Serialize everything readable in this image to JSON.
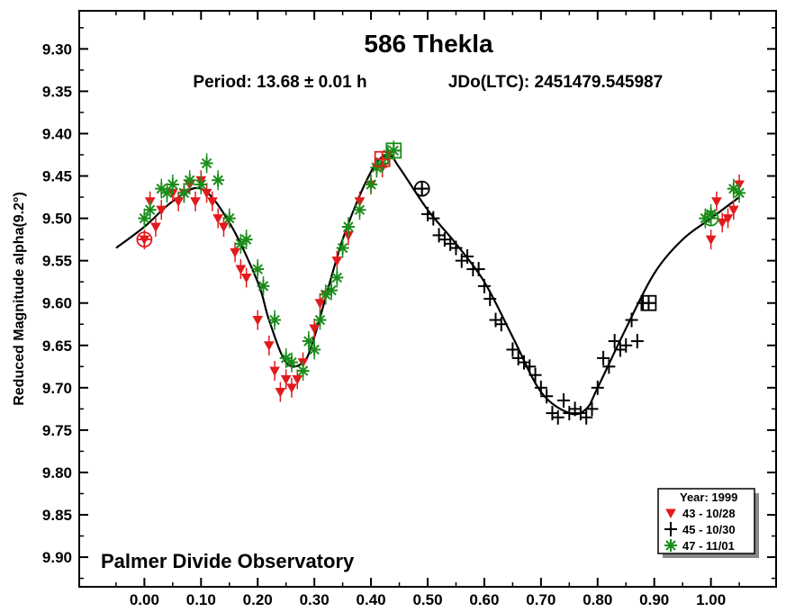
{
  "chart_data": {
    "type": "scatter",
    "title": "586 Thekla",
    "subtitle_period": "Period: 13.68 ± 0.01 h",
    "subtitle_epoch": "JDo(LTC): 2451479.545987",
    "ylabel": "Reduced Magnitude alpha(9.2°)",
    "xlabel": "",
    "footer": "Palmer Divide Observatory",
    "xlim": [
      -0.115,
      1.115
    ],
    "ylim": [
      9.255,
      9.935
    ],
    "y_inverted": true,
    "x_ticks": [
      "0.00",
      "0.10",
      "0.20",
      "0.30",
      "0.40",
      "0.50",
      "0.60",
      "0.70",
      "0.80",
      "0.90",
      "1.00"
    ],
    "y_ticks": [
      "9.30",
      "9.35",
      "9.40",
      "9.45",
      "9.50",
      "9.55",
      "9.60",
      "9.65",
      "9.70",
      "9.75",
      "9.80",
      "9.85",
      "9.90"
    ],
    "legend": {
      "title": "Year: 1999",
      "position": "bottom-right",
      "entries": [
        {
          "label": "43 - 10/28",
          "color": "#e31a1c",
          "marker": "triangle-down"
        },
        {
          "label": "45 - 10/30",
          "color": "#000000",
          "marker": "plus"
        },
        {
          "label": "47 - 11/01",
          "color": "#1a8c1a",
          "marker": "asterisk"
        }
      ]
    },
    "fit_curve": {
      "x": [
        -0.05,
        0.0,
        0.05,
        0.1,
        0.15,
        0.2,
        0.22,
        0.25,
        0.28,
        0.3,
        0.35,
        0.4,
        0.43,
        0.45,
        0.5,
        0.55,
        0.6,
        0.65,
        0.7,
        0.75,
        0.78,
        0.8,
        0.85,
        0.9,
        0.95,
        1.0,
        1.05
      ],
      "y": [
        9.535,
        9.51,
        9.48,
        9.465,
        9.505,
        9.575,
        9.62,
        9.67,
        9.67,
        9.64,
        9.525,
        9.445,
        9.425,
        9.44,
        9.49,
        9.53,
        9.575,
        9.64,
        9.705,
        9.73,
        9.725,
        9.7,
        9.63,
        9.565,
        9.525,
        9.5,
        9.475
      ]
    },
    "series": [
      {
        "name": "43 - 10/28",
        "color": "#e31a1c",
        "marker": "triangle-down",
        "x": [
          0.0,
          0.01,
          0.02,
          0.03,
          0.05,
          0.06,
          0.07,
          0.08,
          0.09,
          0.1,
          0.11,
          0.12,
          0.13,
          0.14,
          0.16,
          0.17,
          0.18,
          0.2,
          0.22,
          0.23,
          0.24,
          0.25,
          0.26,
          0.27,
          0.28,
          0.3,
          0.31,
          0.32,
          0.34,
          0.36,
          0.38,
          0.4,
          0.41,
          0.42,
          1.0,
          1.01,
          1.02,
          1.03,
          1.04,
          1.05
        ],
        "y": [
          9.525,
          9.48,
          9.51,
          9.49,
          9.47,
          9.48,
          9.47,
          9.46,
          9.48,
          9.455,
          9.47,
          9.48,
          9.5,
          9.51,
          9.54,
          9.56,
          9.57,
          9.62,
          9.65,
          9.68,
          9.705,
          9.69,
          9.7,
          9.69,
          9.67,
          9.63,
          9.6,
          9.59,
          9.55,
          9.52,
          9.48,
          9.46,
          9.44,
          9.44,
          9.525,
          9.48,
          9.505,
          9.5,
          9.49,
          9.46
        ]
      },
      {
        "name": "45 - 10/30",
        "color": "#000000",
        "marker": "plus",
        "x": [
          0.49,
          0.5,
          0.51,
          0.52,
          0.53,
          0.54,
          0.55,
          0.56,
          0.57,
          0.58,
          0.59,
          0.6,
          0.61,
          0.62,
          0.63,
          0.65,
          0.66,
          0.67,
          0.68,
          0.69,
          0.7,
          0.71,
          0.72,
          0.73,
          0.74,
          0.75,
          0.76,
          0.77,
          0.78,
          0.79,
          0.8,
          0.81,
          0.82,
          0.83,
          0.84,
          0.85,
          0.86,
          0.87,
          0.88,
          0.89
        ],
        "y": [
          9.465,
          9.495,
          9.5,
          9.52,
          9.525,
          9.53,
          9.535,
          9.55,
          9.545,
          9.56,
          9.56,
          9.58,
          9.595,
          9.62,
          9.625,
          9.655,
          9.665,
          9.67,
          9.675,
          9.685,
          9.7,
          9.71,
          9.73,
          9.735,
          9.715,
          9.73,
          9.725,
          9.73,
          9.735,
          9.725,
          9.7,
          9.665,
          9.675,
          9.645,
          9.655,
          9.65,
          9.62,
          9.645,
          9.6,
          9.6
        ]
      },
      {
        "name": "47 - 11/01",
        "color": "#1a8c1a",
        "marker": "asterisk",
        "x": [
          0.0,
          0.01,
          0.03,
          0.04,
          0.05,
          0.07,
          0.08,
          0.1,
          0.11,
          0.13,
          0.15,
          0.17,
          0.18,
          0.2,
          0.21,
          0.23,
          0.25,
          0.26,
          0.28,
          0.29,
          0.3,
          0.31,
          0.32,
          0.33,
          0.34,
          0.35,
          0.36,
          0.38,
          0.4,
          0.41,
          0.42,
          0.43,
          0.44,
          0.99,
          1.0,
          1.04,
          1.05
        ],
        "y": [
          9.5,
          9.49,
          9.465,
          9.47,
          9.46,
          9.47,
          9.455,
          9.46,
          9.435,
          9.455,
          9.5,
          9.53,
          9.525,
          9.56,
          9.58,
          9.62,
          9.665,
          9.67,
          9.68,
          9.645,
          9.655,
          9.62,
          9.59,
          9.585,
          9.57,
          9.535,
          9.51,
          9.49,
          9.46,
          9.44,
          9.435,
          9.425,
          9.42,
          9.5,
          9.495,
          9.465,
          9.47
        ]
      }
    ],
    "anchor_points": [
      {
        "x": 0.0,
        "y": 9.525,
        "color": "#e31a1c",
        "marker": "circle"
      },
      {
        "x": 0.42,
        "y": 9.43,
        "color": "#e31a1c",
        "marker": "square"
      },
      {
        "x": 0.44,
        "y": 9.42,
        "color": "#1a8c1a",
        "marker": "square"
      },
      {
        "x": 0.49,
        "y": 9.465,
        "color": "#000000",
        "marker": "circle"
      },
      {
        "x": 0.89,
        "y": 9.6,
        "color": "#000000",
        "marker": "square"
      },
      {
        "x": 1.0,
        "y": 9.5,
        "color": "#1a8c1a",
        "marker": "circle"
      }
    ]
  }
}
